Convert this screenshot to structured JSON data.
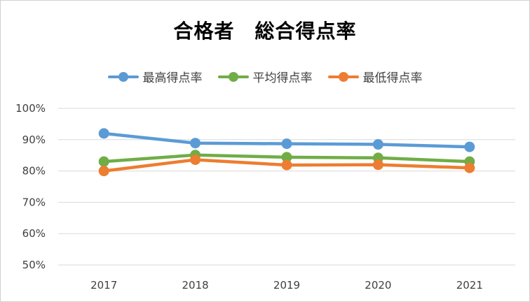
{
  "chart_data": {
    "type": "line",
    "title": "合格者　総合得点率",
    "categories": [
      "2017",
      "2018",
      "2019",
      "2020",
      "2021"
    ],
    "ylim": [
      50,
      100
    ],
    "y_ticks": [
      "100%",
      "90%",
      "80%",
      "70%",
      "60%",
      "50%"
    ],
    "y_tick_values": [
      100,
      90,
      80,
      70,
      60,
      50
    ],
    "grid": true,
    "legend_position": "top",
    "series": [
      {
        "name": "最高得点率",
        "color": "#5b9bd5",
        "values": [
          92.0,
          88.9,
          88.7,
          88.5,
          87.7
        ]
      },
      {
        "name": "平均得点率",
        "color": "#70ad47",
        "values": [
          83.0,
          85.1,
          84.4,
          84.2,
          83.0
        ]
      },
      {
        "name": "最低得点率",
        "color": "#ed7d31",
        "values": [
          80.0,
          83.6,
          81.9,
          82.0,
          81.0
        ]
      }
    ]
  }
}
